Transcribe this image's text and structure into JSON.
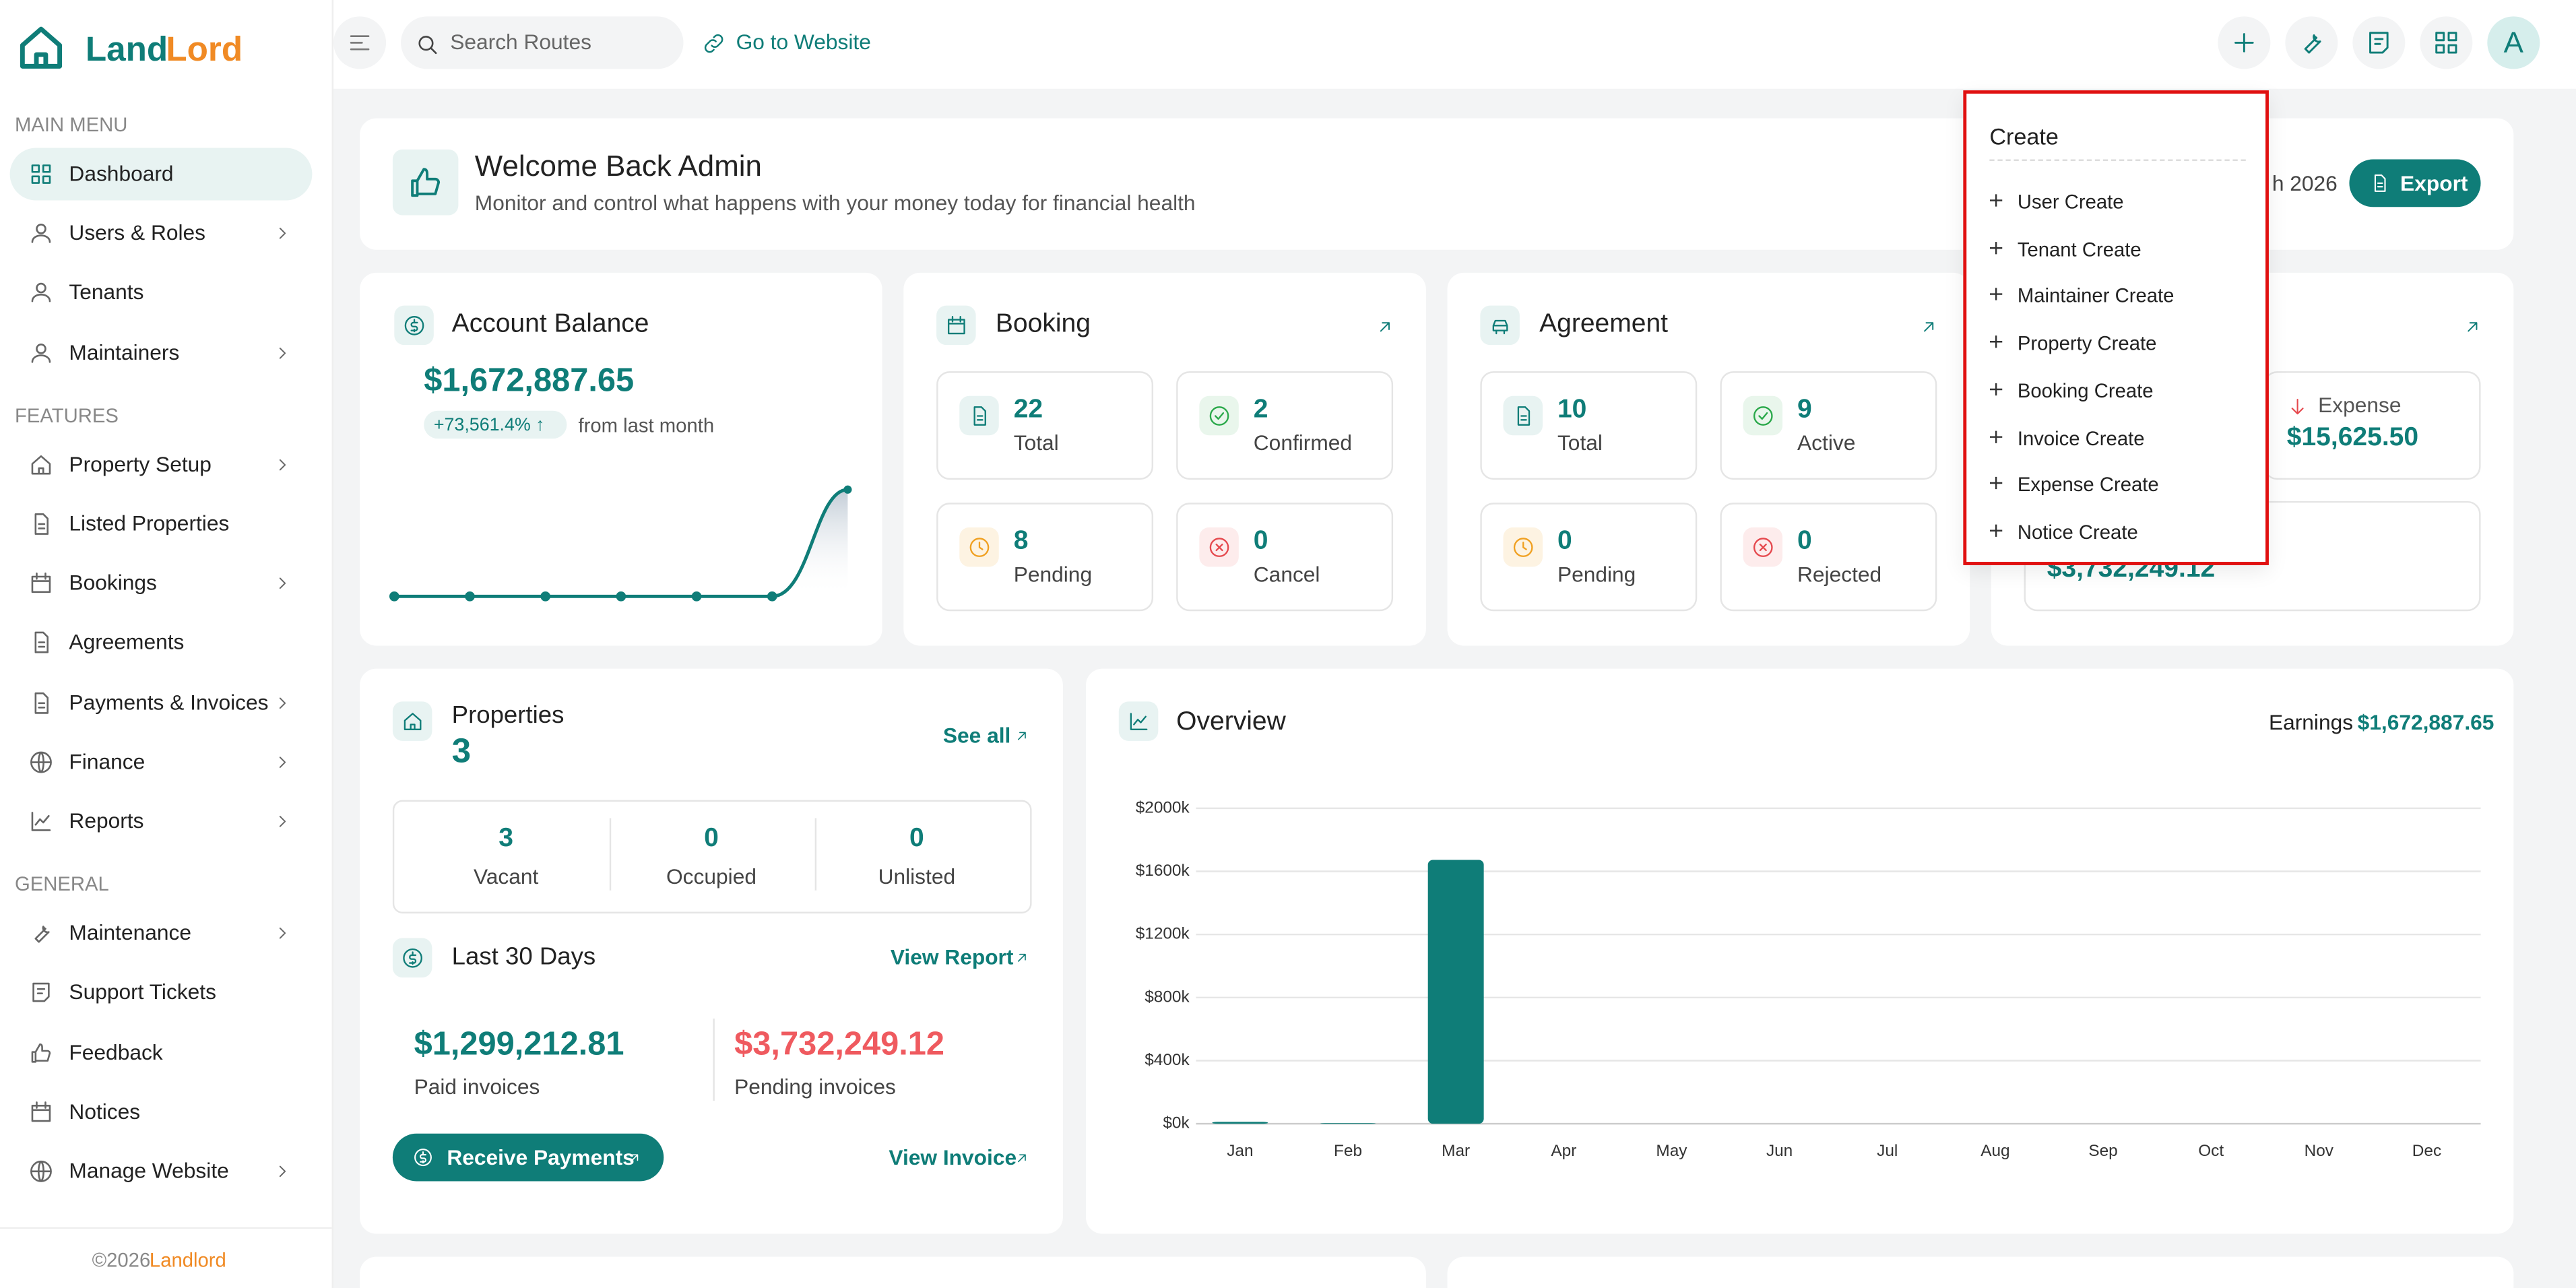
{
  "logo": {
    "part1": "Land",
    "part2": "Lord"
  },
  "sidebar": {
    "sections": [
      {
        "title": "MAIN MENU",
        "items": [
          {
            "label": "Dashboard",
            "submenu": false
          },
          {
            "label": "Users & Roles",
            "submenu": true
          },
          {
            "label": "Tenants",
            "submenu": false
          },
          {
            "label": "Maintainers",
            "submenu": true
          }
        ]
      },
      {
        "title": "FEATURES",
        "items": [
          {
            "label": "Property Setup",
            "submenu": true
          },
          {
            "label": "Listed Properties",
            "submenu": false
          },
          {
            "label": "Bookings",
            "submenu": true
          },
          {
            "label": "Agreements",
            "submenu": false
          },
          {
            "label": "Payments & Invoices",
            "submenu": true
          },
          {
            "label": "Finance",
            "submenu": true
          },
          {
            "label": "Reports",
            "submenu": true
          }
        ]
      },
      {
        "title": "GENERAL",
        "items": [
          {
            "label": "Maintenance",
            "submenu": true
          },
          {
            "label": "Support Tickets",
            "submenu": false
          },
          {
            "label": "Feedback",
            "submenu": false
          },
          {
            "label": "Notices",
            "submenu": false
          },
          {
            "label": "Manage Website",
            "submenu": true
          }
        ]
      }
    ]
  },
  "footer": {
    "copyright": "©2026",
    "brand": "Landlord"
  },
  "topbar": {
    "search_placeholder": "Search Routes",
    "link": "Go to Website",
    "avatar": "A"
  },
  "welcome": {
    "title": "Welcome Back Admin",
    "subtitle": "Monitor and control what happens with your money today for financial health",
    "date": "h 2026",
    "export": "Export"
  },
  "account_balance": {
    "title": "Account Balance",
    "amount": "$1,672,887.65",
    "change": "+73,561.4% ↑",
    "change_note": "from last month",
    "trend": [
      0,
      0,
      0,
      0,
      0,
      0,
      1672887.65
    ]
  },
  "booking": {
    "title": "Booking",
    "stats": [
      {
        "value": 22,
        "label": "Total"
      },
      {
        "value": 2,
        "label": "Confirmed"
      },
      {
        "value": 8,
        "label": "Pending"
      },
      {
        "value": 0,
        "label": "Cancel"
      }
    ]
  },
  "agreement": {
    "title": "Agreement",
    "stats": [
      {
        "value": 10,
        "label": "Total"
      },
      {
        "value": 9,
        "label": "Active"
      },
      {
        "value": 0,
        "label": "Pending"
      },
      {
        "value": 0,
        "label": "Rejected"
      }
    ]
  },
  "finance": {
    "expense_label": "Expense",
    "expense": "$15,625.50",
    "pending": "$3,732,249.12"
  },
  "properties": {
    "title": "Properties",
    "count": 3,
    "see_all": "See all",
    "stats": [
      {
        "value": 3,
        "label": "Vacant"
      },
      {
        "value": 0,
        "label": "Occupied"
      },
      {
        "value": 0,
        "label": "Unlisted"
      }
    ]
  },
  "last_30_days": {
    "title": "Last 30 Days",
    "view_report": "View Report",
    "paid": "$1,299,212.81",
    "paid_label": "Paid invoices",
    "pending": "$3,732,249.12",
    "pending_label": "Pending invoices",
    "button": "Receive Payments",
    "view_invoice": "View Invoice"
  },
  "chart_data": {
    "type": "bar",
    "title": "Overview",
    "earnings_label": "Earnings",
    "earnings": "$1,672,887.65",
    "categories": [
      "Jan",
      "Feb",
      "Mar",
      "Apr",
      "May",
      "Jun",
      "Jul",
      "Aug",
      "Sep",
      "Oct",
      "Nov",
      "Dec"
    ],
    "values": [
      12000,
      4000,
      1672887.65,
      0,
      0,
      0,
      0,
      0,
      0,
      0,
      0,
      0
    ],
    "color": "#0f7d78",
    "grid": true,
    "ylim": [
      0,
      2000000
    ],
    "yticks": [
      {
        "value": 0,
        "label": "$0k"
      },
      {
        "value": 400000,
        "label": "$400k"
      },
      {
        "value": 800000,
        "label": "$800k"
      },
      {
        "value": 1200000,
        "label": "$1200k"
      },
      {
        "value": 1600000,
        "label": "$1600k"
      },
      {
        "value": 2000000,
        "label": "$2000k"
      }
    ]
  },
  "create_menu": {
    "title": "Create",
    "items": [
      "User Create",
      "Tenant Create",
      "Maintainer Create",
      "Property Create",
      "Booking Create",
      "Invoice Create",
      "Expense Create",
      "Notice Create"
    ]
  }
}
